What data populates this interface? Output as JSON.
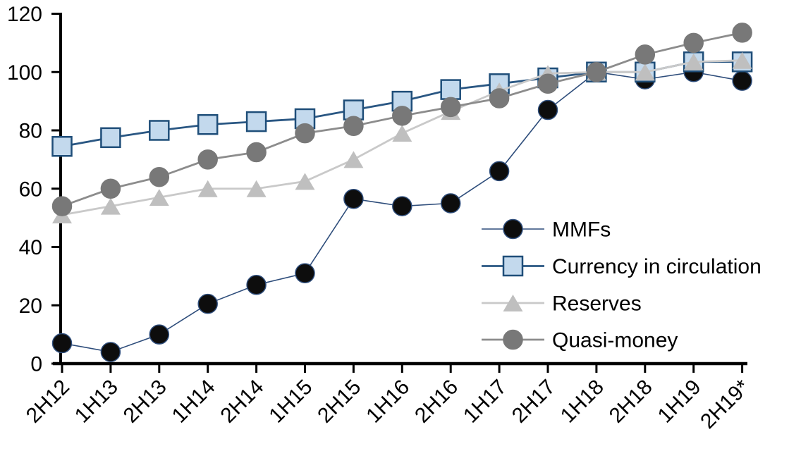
{
  "chart_data": {
    "type": "line",
    "title": "",
    "xlabel": "",
    "ylabel": "",
    "grid": false,
    "legend_position": "middle-right",
    "categories": [
      "2H12",
      "1H13",
      "2H13",
      "1H14",
      "2H14",
      "1H15",
      "2H15",
      "1H16",
      "2H16",
      "1H17",
      "2H17",
      "1H18",
      "2H18",
      "1H19",
      "2H19*"
    ],
    "y_axis": {
      "min": 0,
      "max": 120,
      "step": 20,
      "tick_labels": [
        "0",
        "20",
        "40",
        "60",
        "80",
        "100",
        "120"
      ]
    },
    "series": [
      {
        "name": "MMFs",
        "marker": "circle",
        "marker_fill": "#0d0d0d",
        "marker_stroke": "#2e4d7b",
        "line_color": "#2e4d7b",
        "line_width": 1.6,
        "values": [
          7,
          4,
          10,
          20.5,
          27,
          31,
          56.5,
          54,
          55,
          66,
          87,
          100,
          97.5,
          100,
          97
        ]
      },
      {
        "name": "Currency in circulation",
        "marker": "square",
        "marker_fill": "#c3d9ed",
        "marker_stroke": "#1f4e79",
        "line_color": "#2a5783",
        "line_width": 2.8,
        "values": [
          74.5,
          77.5,
          80,
          82,
          83,
          84,
          87,
          90,
          94,
          96,
          98,
          100,
          100,
          103.5,
          103.5
        ]
      },
      {
        "name": "Reserves",
        "marker": "triangle",
        "marker_fill": "#bfbfbf",
        "marker_stroke": "#bfbfbf",
        "line_color": "#c9c9c9",
        "line_width": 2.8,
        "values": [
          51,
          54,
          57,
          60,
          60,
          62.5,
          70,
          79,
          86.5,
          93.5,
          99.5,
          100,
          100,
          103.5,
          104
        ]
      },
      {
        "name": "Quasi-money",
        "marker": "circle",
        "marker_fill": "#787878",
        "marker_stroke": "#787878",
        "line_color": "#8c8c8c",
        "line_width": 2.8,
        "values": [
          54,
          60,
          64,
          70,
          72.5,
          79,
          81.5,
          85,
          88,
          91,
          96,
          100,
          106,
          110,
          113.5
        ]
      }
    ]
  },
  "colors": {
    "axis": "#000000",
    "background": "#ffffff",
    "text": "#000000"
  }
}
